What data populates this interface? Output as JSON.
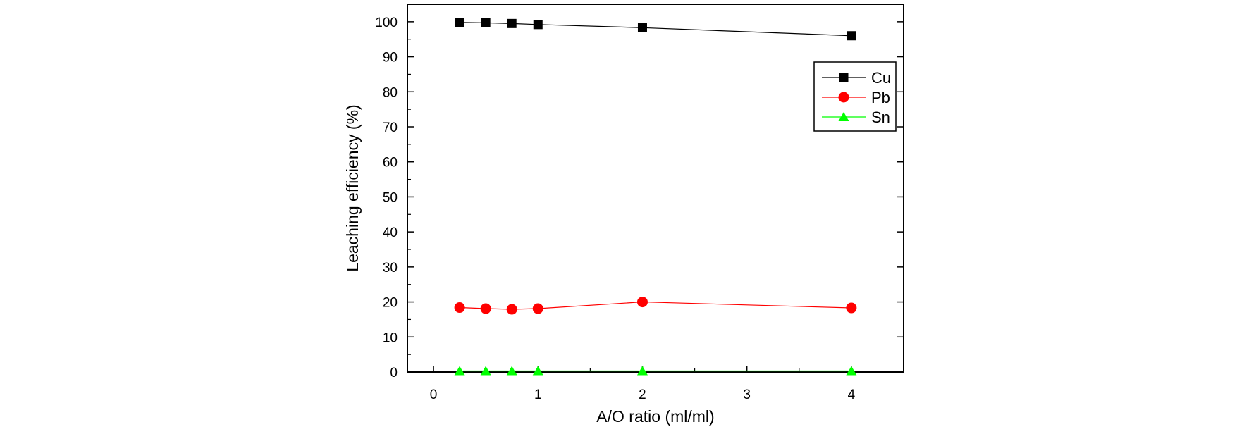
{
  "chart_data": {
    "type": "line",
    "title": "",
    "xlabel": "A/O ratio (ml/ml)",
    "ylabel": "Leaching efficiency (%)",
    "xlim": [
      -0.25,
      4.5
    ],
    "ylim": [
      0,
      105
    ],
    "xticks": [
      0,
      1,
      2,
      3,
      4
    ],
    "xtick_labels": [
      "0",
      "1",
      "2",
      "3",
      "4"
    ],
    "yticks": [
      0,
      10,
      20,
      30,
      40,
      50,
      60,
      70,
      80,
      90,
      100
    ],
    "ytick_labels": [
      "0",
      "10",
      "20",
      "30",
      "40",
      "50",
      "60",
      "70",
      "80",
      "90",
      "100"
    ],
    "x": [
      0.25,
      0.5,
      0.75,
      1,
      2,
      4
    ],
    "legend_position": "top-right",
    "grid": false,
    "series": [
      {
        "name": "Cu",
        "color": "#000000",
        "marker": "square",
        "values": [
          99.8,
          99.7,
          99.5,
          99.2,
          98.3,
          96.0
        ]
      },
      {
        "name": "Pb",
        "color": "#ff0000",
        "marker": "circle",
        "values": [
          18.4,
          18.1,
          17.9,
          18.1,
          20.0,
          18.3
        ]
      },
      {
        "name": "Sn",
        "color": "#00ff00",
        "marker": "triangle",
        "values": [
          0.3,
          0.3,
          0.3,
          0.3,
          0.3,
          0.3
        ]
      }
    ]
  }
}
